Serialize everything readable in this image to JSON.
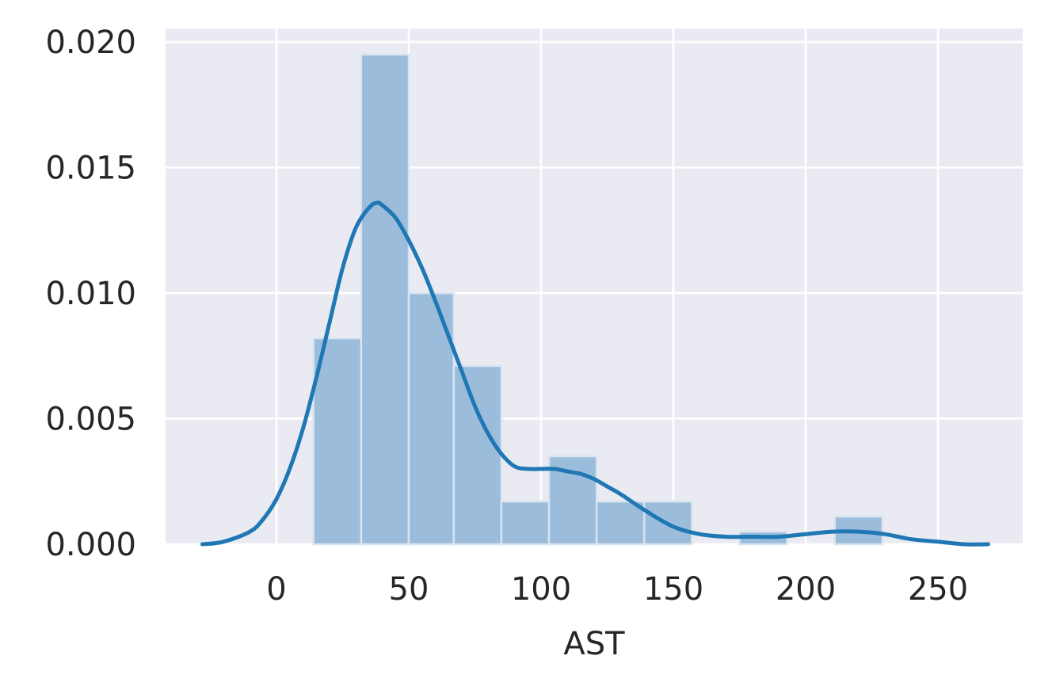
{
  "chart_data": {
    "type": "histogram",
    "xlabel": "AST",
    "ylabel": "",
    "xlim": [
      -36,
      282
    ],
    "ylim": [
      0,
      0.0205
    ],
    "x_ticks": [
      0,
      50,
      100,
      150,
      200,
      250
    ],
    "x_tick_labels": [
      "0",
      "50",
      "100",
      "150",
      "200",
      "250"
    ],
    "y_ticks": [
      0.0,
      0.005,
      0.01,
      0.015,
      0.02
    ],
    "y_tick_labels": [
      "0.000",
      "0.005",
      "0.010",
      "0.015",
      "0.020"
    ],
    "grid": true,
    "histogram": {
      "bins": [
        {
          "x0": 14,
          "x1": 32,
          "density": 0.0082
        },
        {
          "x0": 32,
          "x1": 50,
          "density": 0.0195
        },
        {
          "x0": 50,
          "x1": 67,
          "density": 0.01
        },
        {
          "x0": 67,
          "x1": 85,
          "density": 0.0071
        },
        {
          "x0": 85,
          "x1": 103,
          "density": 0.0017
        },
        {
          "x0": 103,
          "x1": 121,
          "density": 0.0035
        },
        {
          "x0": 121,
          "x1": 139,
          "density": 0.0017
        },
        {
          "x0": 139,
          "x1": 157,
          "density": 0.0017
        },
        {
          "x0": 157,
          "x1": 175,
          "density": 0.0
        },
        {
          "x0": 175,
          "x1": 193,
          "density": 0.0005
        },
        {
          "x0": 193,
          "x1": 211,
          "density": 0.0
        },
        {
          "x0": 211,
          "x1": 229,
          "density": 0.0011
        }
      ]
    },
    "kde": {
      "x": [
        -28,
        -20,
        -10,
        -5,
        0,
        5,
        10,
        15,
        20,
        25,
        30,
        35,
        38,
        40,
        45,
        50,
        55,
        60,
        65,
        70,
        75,
        80,
        85,
        90,
        95,
        100,
        105,
        110,
        115,
        120,
        125,
        130,
        140,
        150,
        160,
        170,
        180,
        190,
        200,
        210,
        220,
        230,
        240,
        250,
        260,
        269
      ],
      "y": [
        0.0,
        0.0001,
        0.0005,
        0.001,
        0.0018,
        0.003,
        0.0046,
        0.0066,
        0.0088,
        0.011,
        0.0126,
        0.0134,
        0.0136,
        0.0135,
        0.013,
        0.0121,
        0.011,
        0.0097,
        0.0083,
        0.0069,
        0.0055,
        0.0044,
        0.0036,
        0.0031,
        0.003,
        0.003,
        0.003,
        0.0029,
        0.0028,
        0.0026,
        0.0023,
        0.002,
        0.0013,
        0.0007,
        0.0004,
        0.0003,
        0.0003,
        0.0003,
        0.0004,
        0.0005,
        0.0005,
        0.0004,
        0.0002,
        0.0001,
        0.0,
        0.0
      ]
    },
    "colors": {
      "plot_bg": "#eaeaf2",
      "grid": "#ffffff",
      "bar_fill": "#9bbcdb",
      "bar_edge": "#d8e4f0",
      "kde_line": "#1f77b4",
      "text": "#262626"
    }
  }
}
